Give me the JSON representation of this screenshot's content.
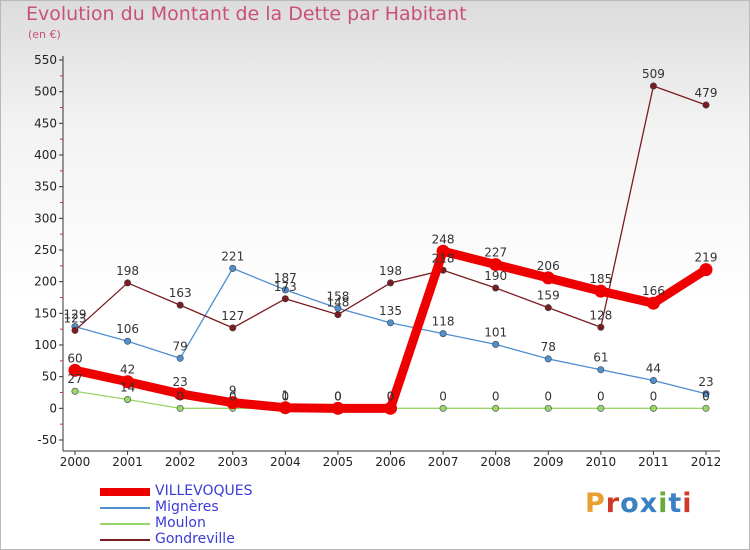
{
  "title": "Evolution du Montant de la Dette par Habitant",
  "subtitle": "(en €)",
  "logo": {
    "text": "Proxiti",
    "colors": [
      "#e8a030",
      "#d03a2a",
      "#3b82c4",
      "#3b82c4",
      "#6aaa3a",
      "#3b82c4",
      "#d03a2a"
    ]
  },
  "chart_data": {
    "type": "line",
    "x": [
      "2000",
      "2001",
      "2002",
      "2003",
      "2004",
      "2005",
      "2006",
      "2007",
      "2008",
      "2009",
      "2010",
      "2011",
      "2012"
    ],
    "ylim": [
      -50,
      550
    ],
    "yticks": [
      -50,
      0,
      50,
      100,
      150,
      200,
      250,
      300,
      350,
      400,
      450,
      500,
      550
    ],
    "grid": false,
    "legend": "bottom-left",
    "series": [
      {
        "name": "Gondreville",
        "color": "#7a1c22",
        "values": [
          123,
          198,
          163,
          127,
          173,
          148,
          198,
          218,
          190,
          159,
          128,
          509,
          479
        ],
        "labels": [
          "123",
          "198",
          "163",
          "127",
          "173",
          "148",
          "198",
          "218",
          "190",
          "159",
          "128",
          "509",
          "479"
        ]
      },
      {
        "name": "Mignères",
        "color": "#4f8fcf",
        "values": [
          129,
          106,
          79,
          221,
          187,
          158,
          135,
          118,
          101,
          78,
          61,
          44,
          23
        ],
        "labels": [
          "129",
          "106",
          "79",
          "221",
          "187",
          "158",
          "135",
          "118",
          "101",
          "78",
          "61",
          "44",
          "23"
        ]
      },
      {
        "name": "Moulon",
        "color": "#99d66a",
        "values": [
          27,
          14,
          0,
          0,
          0,
          0,
          0,
          0,
          0,
          0,
          0,
          0,
          0
        ],
        "labels": [
          "27",
          "14",
          "0",
          "0",
          "0",
          "0",
          "0",
          "0",
          "0",
          "0",
          "0",
          "0",
          "0"
        ]
      },
      {
        "name": "VILLEVOQUES",
        "color": "#ee0000",
        "values": [
          60,
          42,
          23,
          9,
          1,
          0,
          0,
          248,
          227,
          206,
          185,
          166,
          219
        ],
        "labels": [
          "60",
          "42",
          "23",
          "9",
          "1",
          "0",
          "0",
          "248",
          "227",
          "206",
          "185",
          "166",
          "219"
        ]
      }
    ],
    "legend_entries": [
      {
        "name": "VILLEVOQUES",
        "color": "#ee0000",
        "thick": true
      },
      {
        "name": "Mignères",
        "color": "#4f8fcf",
        "thick": false
      },
      {
        "name": "Moulon",
        "color": "#99d66a",
        "thick": false
      },
      {
        "name": "Gondreville",
        "color": "#7a1c22",
        "thick": false
      }
    ]
  }
}
